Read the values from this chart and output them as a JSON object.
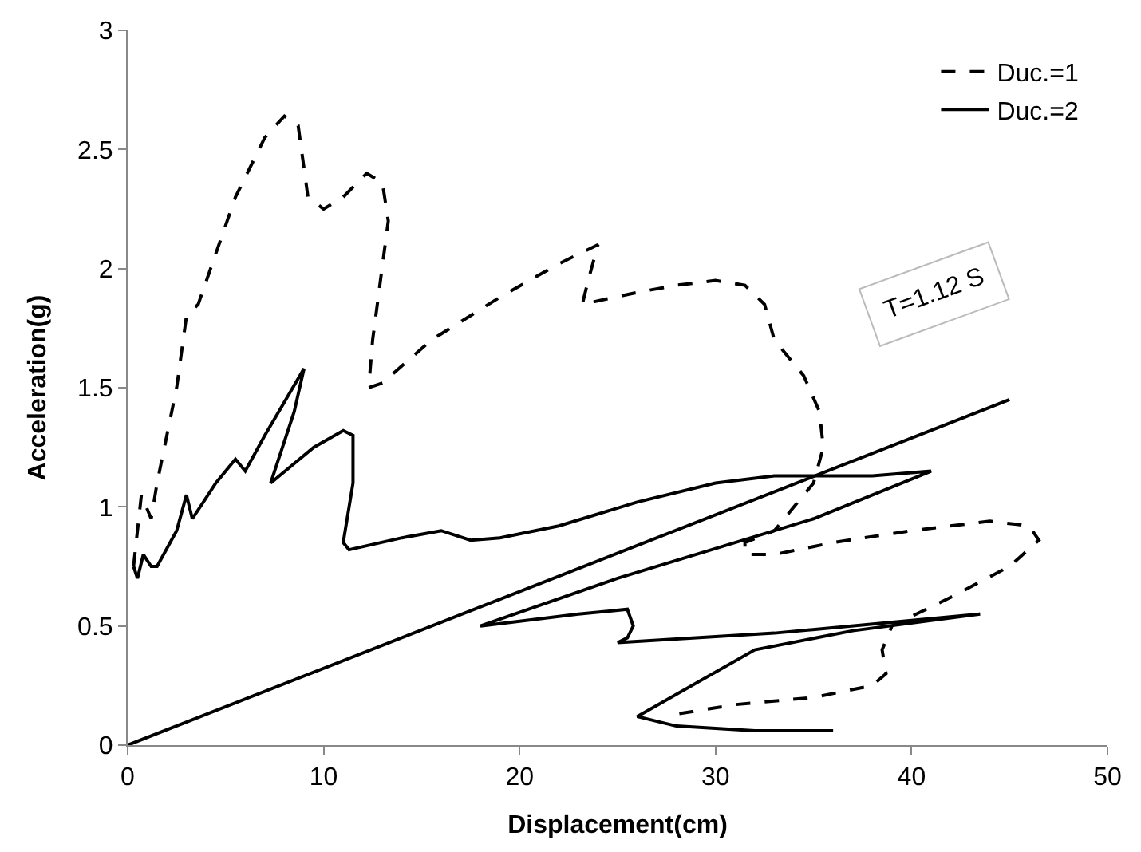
{
  "chart_data": {
    "type": "line",
    "xlabel": "Displacement(cm)",
    "ylabel": "Acceleration(g)",
    "xlim": [
      0,
      50
    ],
    "xticks": [
      0,
      10,
      20,
      30,
      40,
      50
    ],
    "ylim": [
      0,
      3
    ],
    "yticks": [
      0,
      0.5,
      1,
      1.5,
      2,
      2.5,
      3
    ],
    "legend": "top right",
    "marker": "none",
    "annotations": [
      "T=1.12 S"
    ],
    "series": [
      {
        "name": "Duc.=1",
        "color": "#000000",
        "line_style": "dashed",
        "x": [
          0.3,
          0.7,
          1.2,
          1.5,
          2.5,
          3,
          3.6,
          5.5,
          7,
          8,
          8.7,
          9.2,
          10,
          11,
          12.2,
          13,
          13.3,
          12.5,
          12.3,
          13,
          15.5,
          19,
          22,
          24,
          23.5,
          23.2,
          26,
          28,
          30,
          31.5,
          32.5,
          33,
          34.5,
          35.3,
          35.5,
          35,
          34,
          33,
          31.5,
          31.5,
          33,
          36,
          40,
          44,
          46,
          46.5,
          45,
          42,
          39,
          38.5,
          38.7,
          38,
          35,
          31,
          28
        ],
        "values": [
          0.75,
          1.05,
          0.95,
          1.1,
          1.5,
          1.8,
          1.85,
          2.3,
          2.55,
          2.64,
          2.6,
          2.3,
          2.25,
          2.3,
          2.4,
          2.36,
          2.2,
          1.7,
          1.5,
          1.52,
          1.7,
          1.88,
          2.02,
          2.1,
          1.95,
          1.85,
          1.9,
          1.93,
          1.95,
          1.93,
          1.85,
          1.7,
          1.55,
          1.4,
          1.25,
          1.1,
          1.0,
          0.9,
          0.85,
          0.8,
          0.8,
          0.85,
          0.9,
          0.94,
          0.92,
          0.86,
          0.75,
          0.62,
          0.5,
          0.4,
          0.3,
          0.25,
          0.2,
          0.17,
          0.13
        ]
      },
      {
        "name": "Duc.=2",
        "color": "#000000",
        "line_style": "solid",
        "x": [
          0.3,
          0.5,
          0.8,
          1.2,
          1.5,
          2.5,
          3,
          3.3,
          4.5,
          5,
          5.5,
          6,
          7,
          9,
          8.5,
          7.3,
          9.5,
          11,
          11.5,
          11.5,
          11,
          11.3,
          14,
          16,
          17.5,
          19,
          22,
          26,
          30,
          33,
          38,
          41,
          35,
          25,
          18,
          23,
          25.5,
          25.8,
          25.5,
          25,
          33,
          43.5,
          37,
          32,
          26,
          28,
          32,
          36
        ],
        "values": [
          0.75,
          0.7,
          0.8,
          0.75,
          0.75,
          0.9,
          1.05,
          0.95,
          1.1,
          1.15,
          1.2,
          1.15,
          1.3,
          1.58,
          1.4,
          1.1,
          1.25,
          1.32,
          1.3,
          1.1,
          0.85,
          0.82,
          0.87,
          0.9,
          0.86,
          0.87,
          0.92,
          1.02,
          1.1,
          1.13,
          1.13,
          1.15,
          0.95,
          0.7,
          0.5,
          0.55,
          0.57,
          0.5,
          0.45,
          0.43,
          0.47,
          0.55,
          0.48,
          0.4,
          0.12,
          0.08,
          0.06,
          0.06
        ]
      },
      {
        "color": "#000000",
        "line_style": "solid",
        "x": [
          0,
          45
        ],
        "values": [
          0,
          1.45
        ]
      }
    ]
  }
}
